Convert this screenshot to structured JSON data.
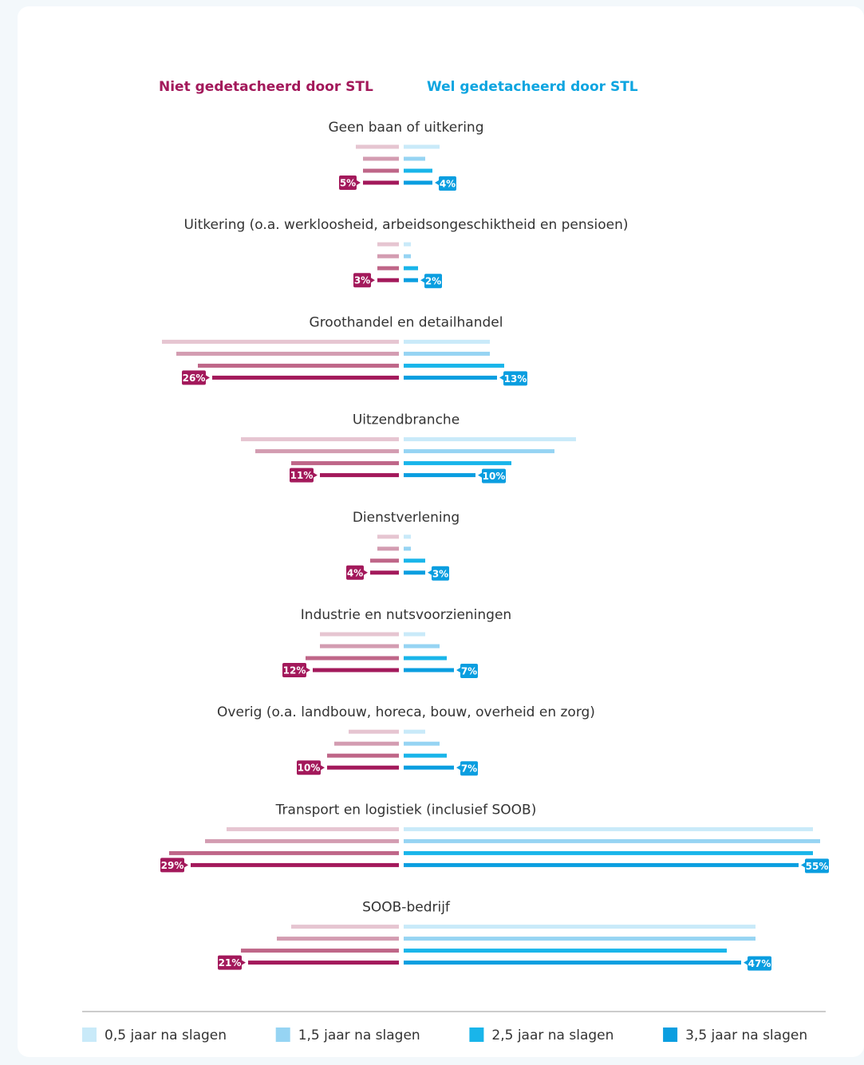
{
  "chart_data": {
    "type": "butterfly",
    "left_title": "Niet gedetacheerd door STL",
    "left_title_color": "#a3195b",
    "right_title": "Wel gedetacheerd door STL",
    "right_title_color": "#0ea5e0",
    "series": [
      {
        "name": "0,5 jaar na slagen",
        "color": "#c9eaf9",
        "left_color": "#e6c5d1"
      },
      {
        "name": "1,5 jaar na slagen",
        "color": "#96d4f3",
        "left_color": "#d39cb1"
      },
      {
        "name": "2,5 jaar na slagen",
        "color": "#19b5ea",
        "left_color": "#bf6688"
      },
      {
        "name": "3,5 jaar na slagen",
        "color": "#0a9ee0",
        "left_color": "#a3195b"
      }
    ],
    "groups": [
      {
        "name": "Geen baan of uitkering",
        "left": [
          6,
          5,
          5,
          5
        ],
        "right": [
          5,
          3,
          4,
          4
        ],
        "left_label": "5%",
        "right_label": "4%"
      },
      {
        "name": "Uitkering (o.a. werkloosheid, arbeidsongeschiktheid en pensioen)",
        "left": [
          3,
          3,
          3,
          3
        ],
        "right": [
          1,
          1,
          2,
          2
        ],
        "left_label": "3%",
        "right_label": "2%"
      },
      {
        "name": "Groothandel en detailhandel",
        "left": [
          33,
          31,
          28,
          26
        ],
        "right": [
          12,
          12,
          14,
          13
        ],
        "left_label": "26%",
        "right_label": "13%"
      },
      {
        "name": "Uitzendbranche",
        "left": [
          22,
          20,
          15,
          11
        ],
        "right": [
          24,
          21,
          15,
          10
        ],
        "left_label": "11%",
        "right_label": "10%"
      },
      {
        "name": "Dienstverlening",
        "left": [
          3,
          3,
          4,
          4
        ],
        "right": [
          1,
          1,
          3,
          3
        ],
        "left_label": "4%",
        "right_label": "3%"
      },
      {
        "name": "Industrie en nutsvoorzieningen",
        "left": [
          11,
          11,
          13,
          12
        ],
        "right": [
          3,
          5,
          6,
          7
        ],
        "left_label": "12%",
        "right_label": "7%"
      },
      {
        "name": "Overig (o.a. landbouw, horeca, bouw, overheid en zorg)",
        "left": [
          7,
          9,
          10,
          10
        ],
        "right": [
          3,
          5,
          6,
          7
        ],
        "left_label": "10%",
        "right_label": "7%"
      },
      {
        "name": "Transport en logistiek (inclusief SOOB)",
        "left": [
          24,
          27,
          32,
          29
        ],
        "right": [
          57,
          58,
          57,
          55
        ],
        "left_label": "29%",
        "right_label": "55%"
      },
      {
        "name": "SOOB-bedrijf",
        "left": [
          15,
          17,
          22,
          21
        ],
        "right": [
          49,
          49,
          45,
          47
        ],
        "left_label": "21%",
        "right_label": "47%"
      }
    ]
  }
}
